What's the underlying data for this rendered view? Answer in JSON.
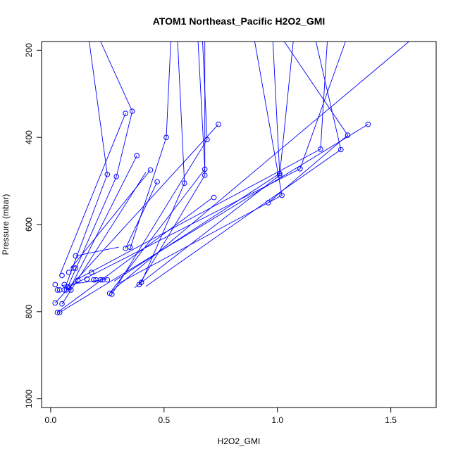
{
  "chart_data": {
    "type": "line",
    "title": "ATOM1 Northeast_Pacific H2O2_GMI",
    "xlabel": "H2O2_GMI",
    "ylabel": "Pressure (mbar)",
    "xlim": [
      -0.04,
      1.7
    ],
    "ylim": [
      1020,
      180
    ],
    "y_reversed": true,
    "x_ticks": [
      0.0,
      0.5,
      1.0,
      1.5
    ],
    "x_tick_labels": [
      "0.0",
      "0.5",
      "1.0",
      "1.5"
    ],
    "y_ticks": [
      200,
      400,
      600,
      800,
      1000
    ],
    "y_tick_labels": [
      "200",
      "400",
      "600",
      "800",
      "1000"
    ],
    "grid": false,
    "legend": "none",
    "color": "#0000ff",
    "series": [
      {
        "x": [
          0.17,
          0.25,
          0.06
        ],
        "y": [
          180,
          485,
          750
        ]
      },
      {
        "x": [
          0.22,
          0.36,
          0.29,
          0.07
        ],
        "y": [
          180,
          340,
          490,
          750
        ]
      },
      {
        "x": [
          0.33,
          0.04
        ],
        "y": [
          345,
          717
        ]
      },
      {
        "x": [
          0.38,
          0.08
        ],
        "y": [
          442,
          752
        ]
      },
      {
        "x": [
          0.44,
          0.09
        ],
        "y": [
          475,
          700
        ]
      },
      {
        "x": [
          0.42,
          0.05
        ],
        "y": [
          480,
          783
        ]
      },
      {
        "x": [
          0.47,
          0.33
        ],
        "y": [
          502,
          655
        ]
      },
      {
        "x": [
          0.53,
          0.51,
          0.35
        ],
        "y": [
          180,
          400,
          656
        ]
      },
      {
        "x": [
          0.56,
          0.59,
          0.4
        ],
        "y": [
          180,
          505,
          733
        ]
      },
      {
        "x": [
          0.65,
          0.68,
          0.26
        ],
        "y": [
          180,
          473,
          758
        ]
      },
      {
        "x": [
          0.68,
          0.68,
          0.39
        ],
        "y": [
          180,
          487,
          738
        ]
      },
      {
        "x": [
          0.67,
          0.69,
          0.27
        ],
        "y": [
          180,
          405,
          760
        ]
      },
      {
        "x": [
          0.74,
          0.02
        ],
        "y": [
          370,
          780
        ]
      },
      {
        "x": [
          0.71,
          0.03
        ],
        "y": [
          540,
          802
        ]
      },
      {
        "x": [
          0.3,
          0.11
        ],
        "y": [
          652,
          672
        ]
      },
      {
        "x": [
          0.25,
          0.05
        ],
        "y": [
          725,
          740
        ]
      },
      {
        "x": [
          0.9,
          1.02,
          0.3
        ],
        "y": [
          180,
          533,
          735
        ]
      },
      {
        "x": [
          0.98,
          1.01,
          0.28
        ],
        "y": [
          180,
          483,
          730
        ]
      },
      {
        "x": [
          1.07,
          1.01,
          0.37
        ],
        "y": [
          180,
          487,
          745
        ]
      },
      {
        "x": [
          1.03,
          1.31,
          0.96
        ],
        "y": [
          180,
          395,
          550
        ]
      },
      {
        "x": [
          1.17,
          1.28,
          0.42
        ],
        "y": [
          180,
          428,
          742
        ]
      },
      {
        "x": [
          1.22,
          1.19,
          0.12
        ],
        "y": [
          180,
          427,
          725
        ]
      },
      {
        "x": [
          1.3,
          1.1,
          0.08
        ],
        "y": [
          180,
          472,
          743
        ]
      },
      {
        "x": [
          1.4,
          0.04
        ],
        "y": [
          370,
          802
        ]
      },
      {
        "x": [
          1.58,
          0.26
        ],
        "y": [
          180,
          757
        ]
      }
    ],
    "points": [
      {
        "x": 0.02,
        "y": 738
      },
      {
        "x": 0.03,
        "y": 750
      },
      {
        "x": 0.04,
        "y": 750
      },
      {
        "x": 0.05,
        "y": 717
      },
      {
        "x": 0.06,
        "y": 738
      },
      {
        "x": 0.06,
        "y": 750
      },
      {
        "x": 0.07,
        "y": 750
      },
      {
        "x": 0.08,
        "y": 745
      },
      {
        "x": 0.09,
        "y": 750
      },
      {
        "x": 0.08,
        "y": 710
      },
      {
        "x": 0.1,
        "y": 700
      },
      {
        "x": 0.11,
        "y": 700
      },
      {
        "x": 0.11,
        "y": 672
      },
      {
        "x": 0.12,
        "y": 728
      },
      {
        "x": 0.16,
        "y": 725
      },
      {
        "x": 0.18,
        "y": 710
      },
      {
        "x": 0.19,
        "y": 727
      },
      {
        "x": 0.2,
        "y": 727
      },
      {
        "x": 0.22,
        "y": 727
      },
      {
        "x": 0.23,
        "y": 727
      },
      {
        "x": 0.25,
        "y": 727
      },
      {
        "x": 0.02,
        "y": 780
      },
      {
        "x": 0.05,
        "y": 782
      },
      {
        "x": 0.03,
        "y": 802
      },
      {
        "x": 0.04,
        "y": 802
      },
      {
        "x": 0.26,
        "y": 758
      },
      {
        "x": 0.27,
        "y": 760
      },
      {
        "x": 0.39,
        "y": 738
      },
      {
        "x": 0.4,
        "y": 733
      },
      {
        "x": 0.33,
        "y": 655
      },
      {
        "x": 0.35,
        "y": 652
      },
      {
        "x": 0.25,
        "y": 485
      },
      {
        "x": 0.29,
        "y": 490
      },
      {
        "x": 0.33,
        "y": 345
      },
      {
        "x": 0.36,
        "y": 340
      },
      {
        "x": 0.38,
        "y": 442
      },
      {
        "x": 0.44,
        "y": 475
      },
      {
        "x": 0.47,
        "y": 502
      },
      {
        "x": 0.51,
        "y": 400
      },
      {
        "x": 0.59,
        "y": 505
      },
      {
        "x": 0.68,
        "y": 473
      },
      {
        "x": 0.68,
        "y": 487
      },
      {
        "x": 0.69,
        "y": 405
      },
      {
        "x": 0.72,
        "y": 538
      },
      {
        "x": 0.74,
        "y": 370
      },
      {
        "x": 0.96,
        "y": 550
      },
      {
        "x": 1.01,
        "y": 483
      },
      {
        "x": 1.01,
        "y": 487
      },
      {
        "x": 1.02,
        "y": 533
      },
      {
        "x": 1.1,
        "y": 472
      },
      {
        "x": 1.19,
        "y": 427
      },
      {
        "x": 1.28,
        "y": 428
      },
      {
        "x": 1.31,
        "y": 395
      },
      {
        "x": 1.4,
        "y": 370
      }
    ]
  }
}
